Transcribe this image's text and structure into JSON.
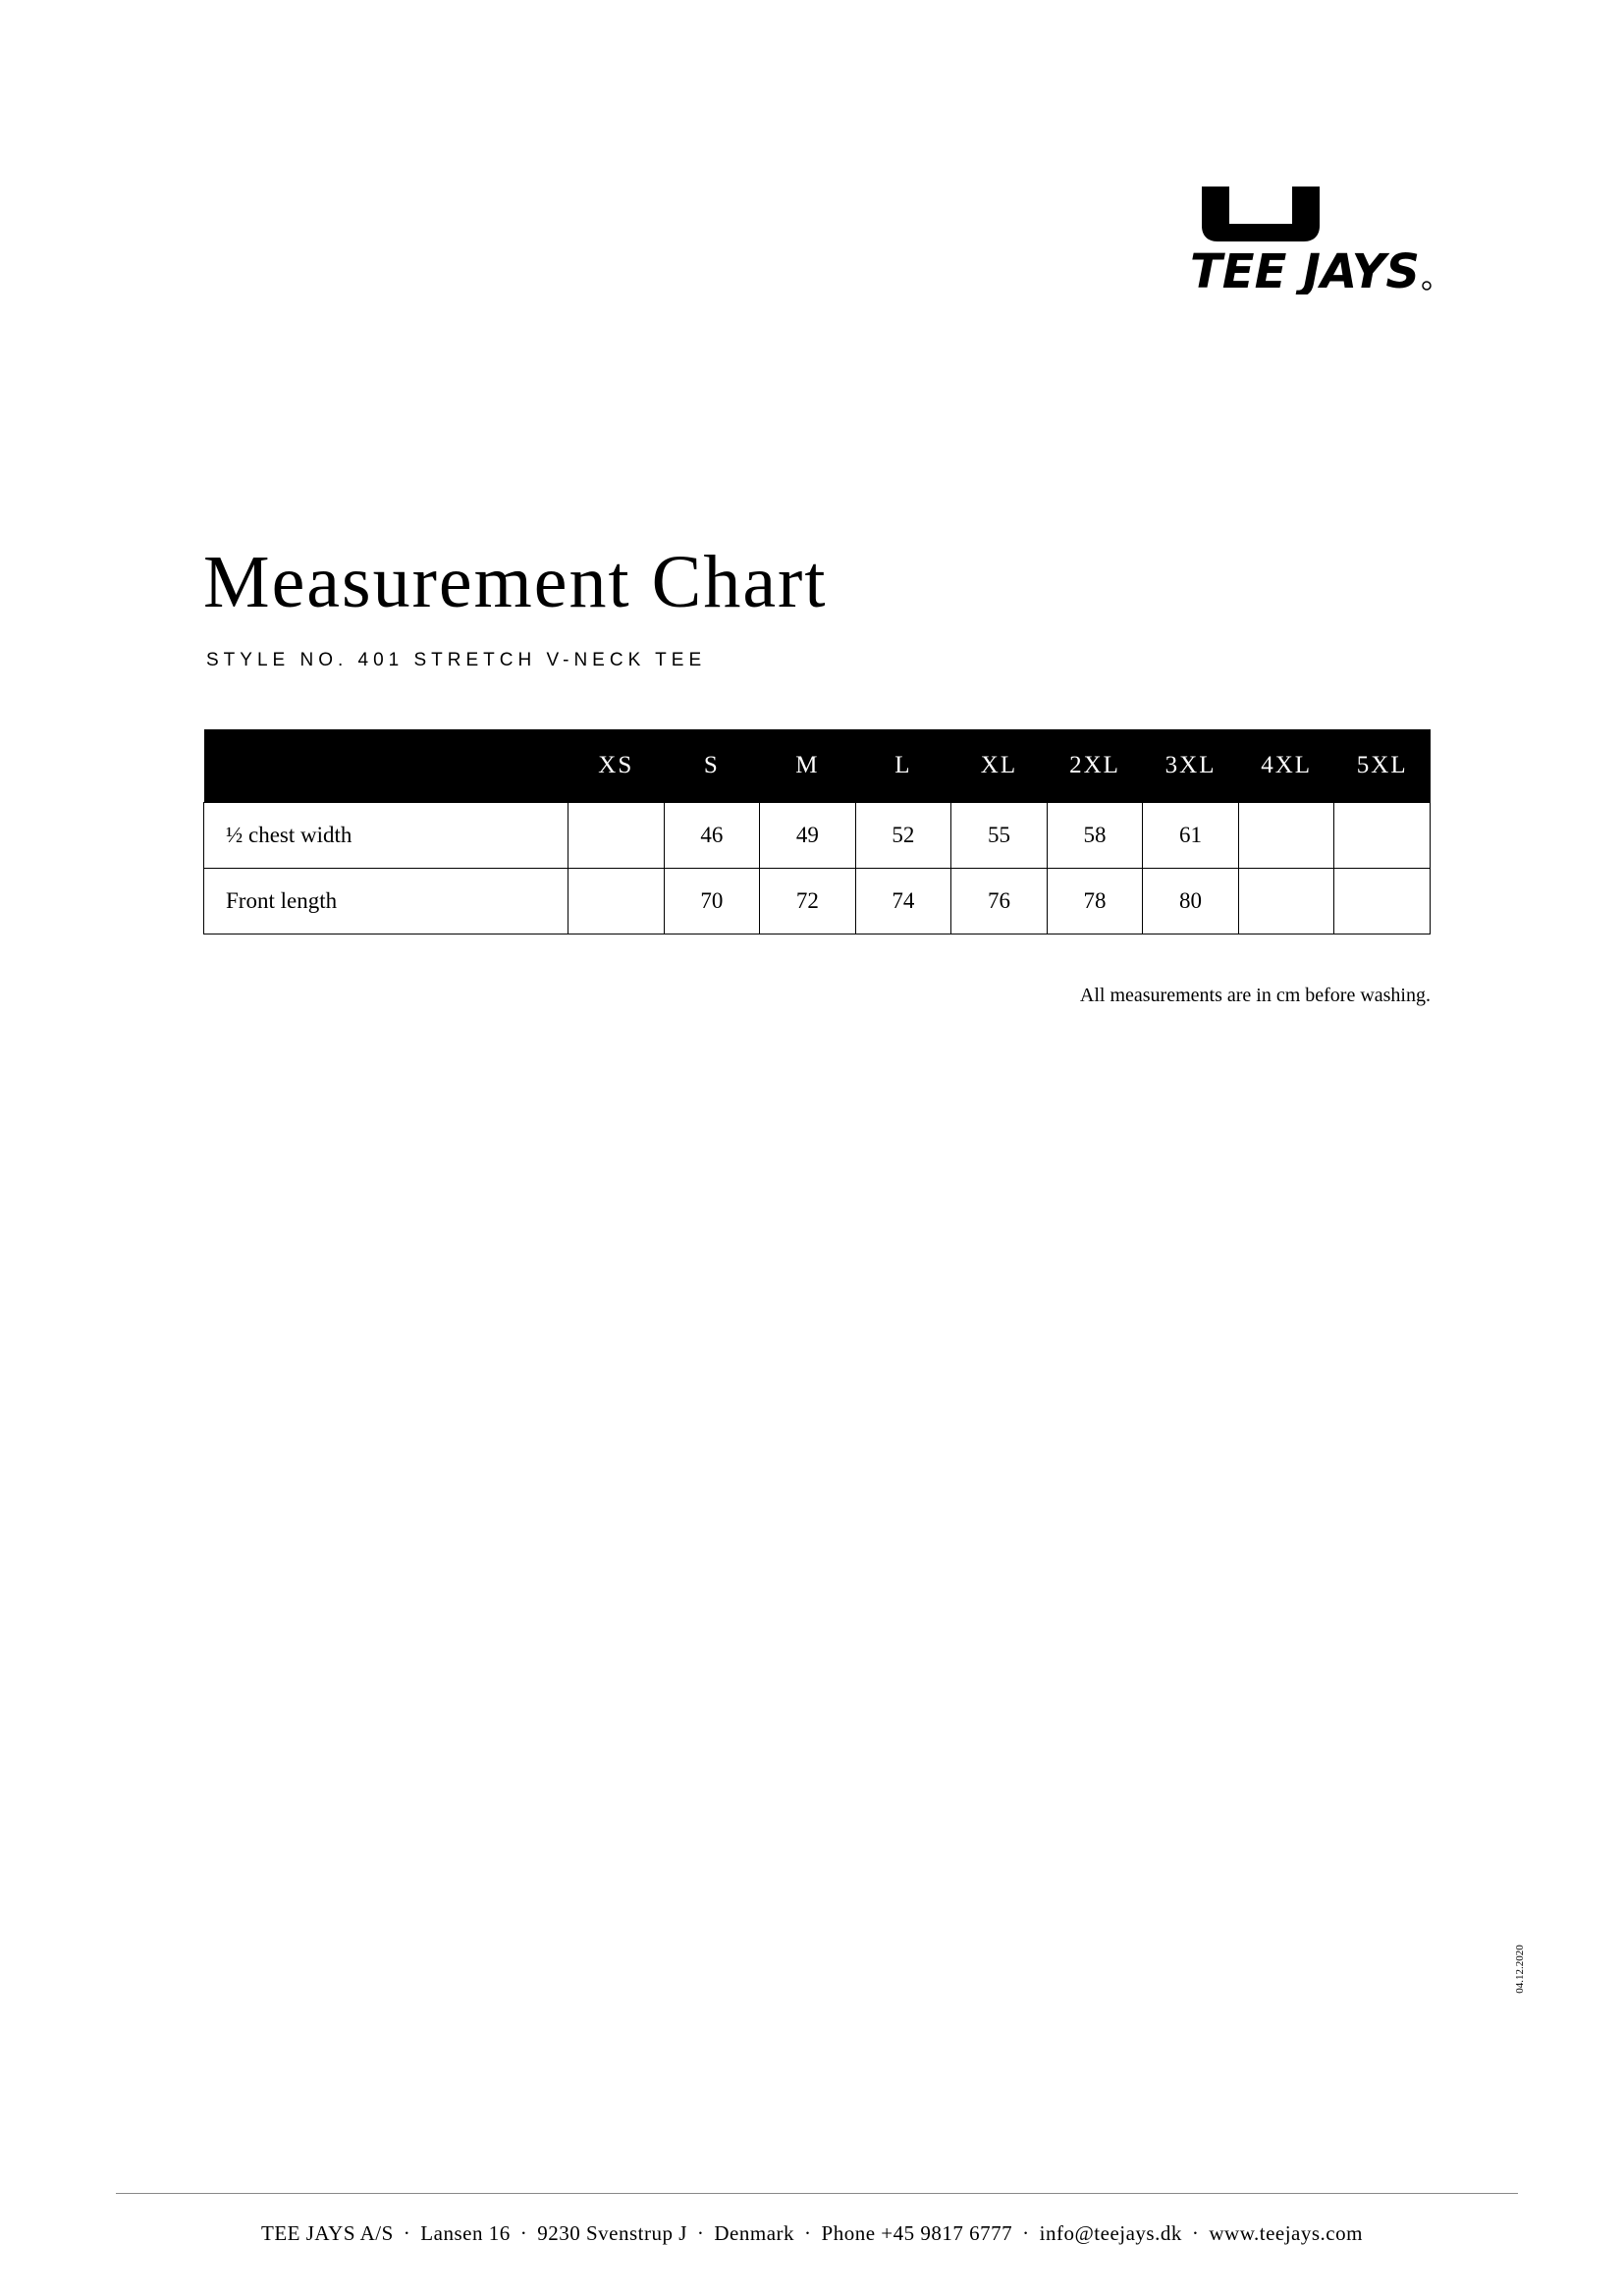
{
  "logo": {
    "text": "TEE JAYS",
    "icon": "tee-jays-logo"
  },
  "title": "Measurement Chart",
  "subtitle": "STYLE NO. 401 STRETCH V-NECK TEE",
  "table": {
    "columns": [
      "",
      "XS",
      "S",
      "M",
      "L",
      "XL",
      "2XL",
      "3XL",
      "4XL",
      "5XL"
    ],
    "rows": [
      {
        "label": "½ chest width",
        "values": [
          "",
          "46",
          "49",
          "52",
          "55",
          "58",
          "61",
          "",
          ""
        ]
      },
      {
        "label": "Front length",
        "values": [
          "",
          "70",
          "72",
          "74",
          "76",
          "78",
          "80",
          "",
          ""
        ]
      }
    ]
  },
  "note": "All measurements are in cm before washing.",
  "date": "04.12.2020",
  "footer": {
    "items": [
      "TEE JAYS A/S",
      "Lansen 16",
      "9230 Svenstrup J",
      "Denmark",
      "Phone +45 9817 6777",
      "info@teejays.dk",
      "www.teejays.com"
    ],
    "separator": "·"
  }
}
